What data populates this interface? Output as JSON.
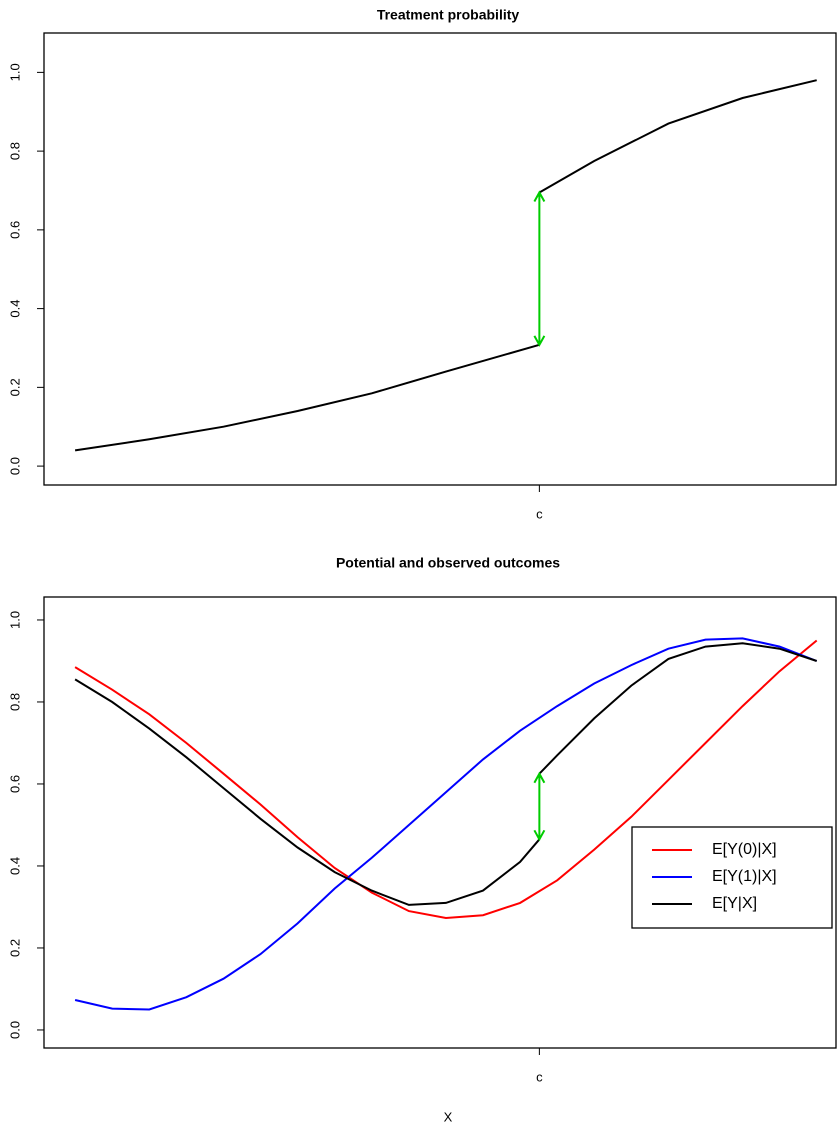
{
  "chart_data": [
    {
      "type": "line",
      "title": "Treatment probability",
      "xlim": [
        -0.042,
        1.026
      ],
      "ylim": [
        -0.048,
        1.1
      ],
      "xticks": [
        {
          "value": 0.626,
          "label": "c"
        }
      ],
      "yticks": [
        {
          "value": 0,
          "label": "0.0"
        },
        0.2,
        0.4,
        0.6,
        0.8,
        {
          "value": 1,
          "label": "1.0"
        }
      ],
      "jump_color": "#00cc00",
      "series": [
        {
          "color": "#000000",
          "x": [
            0,
            0.1,
            0.2,
            0.3,
            0.4,
            0.5,
            0.626,
            0.626,
            0.626,
            0.7,
            0.8,
            0.9,
            1.0
          ],
          "values": [
            0.04,
            0.068,
            0.1,
            0.14,
            0.185,
            0.24,
            0.308,
            null,
            0.695,
            0.775,
            0.87,
            0.935,
            0.98
          ]
        }
      ]
    },
    {
      "type": "line",
      "title": "Potential and observed outcomes",
      "xlabel": "X",
      "xlim": [
        -0.042,
        1.026
      ],
      "ylim": [
        -0.044,
        1.056
      ],
      "xticks": [
        {
          "value": 0.626,
          "label": "c"
        }
      ],
      "yticks": [
        {
          "value": 0,
          "label": "0.0"
        },
        0.2,
        0.4,
        0.6,
        0.8,
        {
          "value": 1,
          "label": "1.0"
        }
      ],
      "jump_color": "#00cc00",
      "legend": "bottom-right",
      "series": [
        {
          "name": "E[Y(0)|X]",
          "color": "#ff0000",
          "x": [
            0,
            0.05,
            0.1,
            0.15,
            0.2,
            0.25,
            0.3,
            0.35,
            0.4,
            0.45,
            0.5,
            0.55,
            0.6,
            0.65,
            0.7,
            0.75,
            0.8,
            0.85,
            0.9,
            0.95,
            1.0
          ],
          "values": [
            0.885,
            0.83,
            0.77,
            0.7,
            0.625,
            0.55,
            0.47,
            0.395,
            0.335,
            0.29,
            0.273,
            0.28,
            0.31,
            0.365,
            0.44,
            0.52,
            0.61,
            0.7,
            0.79,
            0.875,
            0.95
          ]
        },
        {
          "name": "E[Y(1)|X]",
          "color": "#0000ff",
          "x": [
            0,
            0.05,
            0.1,
            0.15,
            0.2,
            0.25,
            0.3,
            0.35,
            0.4,
            0.45,
            0.5,
            0.55,
            0.6,
            0.65,
            0.7,
            0.75,
            0.8,
            0.85,
            0.9,
            0.95,
            1.0
          ],
          "values": [
            0.073,
            0.052,
            0.05,
            0.08,
            0.125,
            0.185,
            0.26,
            0.345,
            0.42,
            0.5,
            0.58,
            0.66,
            0.73,
            0.79,
            0.845,
            0.89,
            0.93,
            0.952,
            0.955,
            0.935,
            0.9
          ]
        },
        {
          "name": "E[Y|X]",
          "color": "#000000",
          "x": [
            0,
            0.05,
            0.1,
            0.15,
            0.2,
            0.25,
            0.3,
            0.35,
            0.4,
            0.45,
            0.5,
            0.55,
            0.6,
            0.626,
            0.626,
            0.626,
            0.65,
            0.7,
            0.75,
            0.8,
            0.85,
            0.9,
            0.95,
            1.0
          ],
          "values": [
            0.855,
            0.8,
            0.735,
            0.665,
            0.59,
            0.515,
            0.445,
            0.385,
            0.34,
            0.305,
            0.31,
            0.34,
            0.41,
            0.465,
            null,
            0.625,
            0.67,
            0.76,
            0.84,
            0.905,
            0.935,
            0.943,
            0.93,
            0.9
          ]
        }
      ]
    }
  ]
}
